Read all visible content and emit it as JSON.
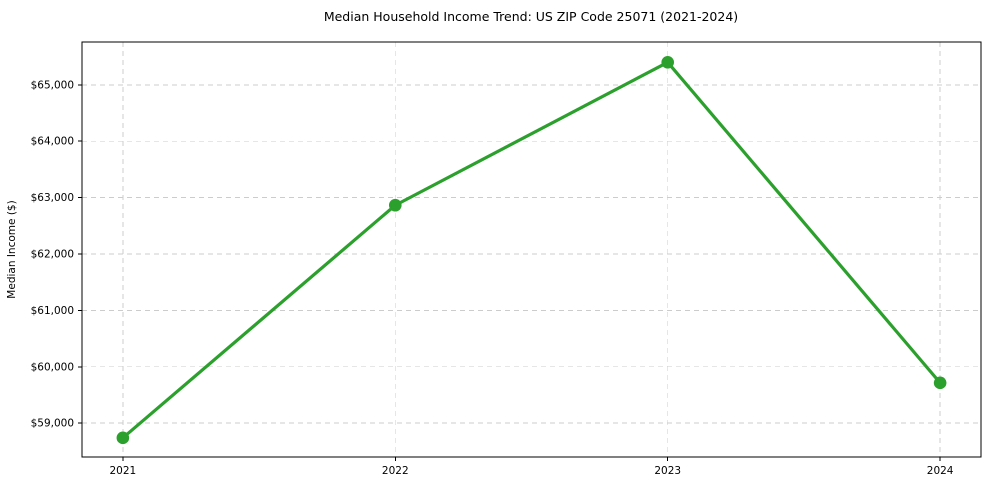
{
  "chart_data": {
    "type": "line",
    "title": "Median Household Income Trend: US ZIP Code 25071 (2021-2024)",
    "xlabel": "",
    "ylabel": "Median Income ($)",
    "x": [
      2021,
      2022,
      2023,
      2024
    ],
    "xtick_labels": [
      "2021",
      "2022",
      "2023",
      "2024"
    ],
    "series": [
      {
        "name": "Median household income",
        "values": [
          58740,
          62865,
          65400,
          59715
        ]
      }
    ],
    "yticks": [
      59000,
      60000,
      61000,
      62000,
      63000,
      64000,
      65000
    ],
    "ytick_labels": [
      "$59,000",
      "$60,000",
      "$61,000",
      "$62,000",
      "$63,000",
      "$64,000",
      "$65,000"
    ],
    "ylim": [
      58400,
      65760
    ],
    "xlim": [
      2020.85,
      2024.15
    ],
    "grid": true,
    "grid_style": "dashed",
    "legend": false,
    "colors": {
      "line": "#2ca02c",
      "marker": "#2ca02c",
      "grid": "#cccccc",
      "frame": "#000000",
      "text": "#000000",
      "background": "#ffffff"
    }
  }
}
